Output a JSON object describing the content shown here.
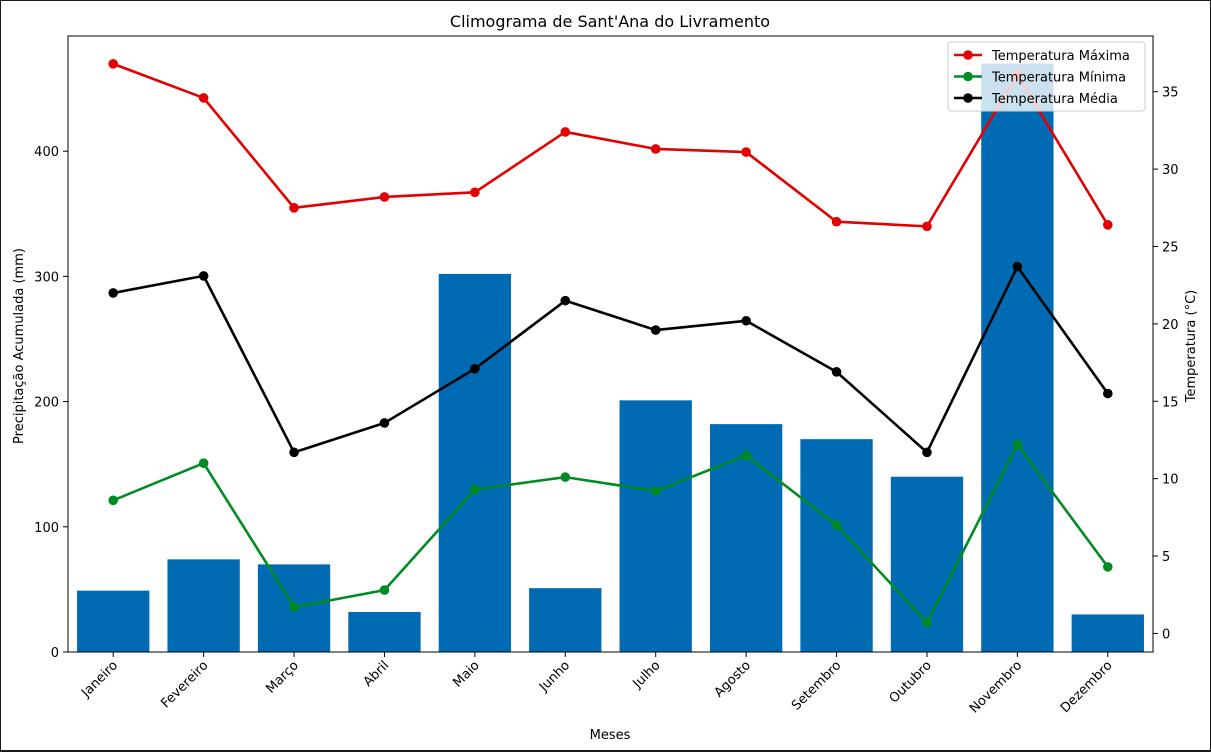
{
  "chart_data": {
    "type": "bar",
    "title": "Climograma de Sant'Ana do Livramento",
    "xlabel": "Meses",
    "ylabel": "Precipitação Acumulada (mm)",
    "y2label": "Temperatura (°C)",
    "categories": [
      "Janeiro",
      "Fevereiro",
      "Março",
      "Abril",
      "Maio",
      "Junho",
      "Julho",
      "Agosto",
      "Setembro",
      "Outubro",
      "Novembro",
      "Dezembro"
    ],
    "ylim": [
      0,
      492
    ],
    "y2lim": [
      -1.2,
      38.6
    ],
    "yticks": [
      0,
      100,
      200,
      300,
      400
    ],
    "y2ticks": [
      0,
      5,
      10,
      15,
      20,
      25,
      30,
      35
    ],
    "grid": false,
    "legend_position": "top-right",
    "bars": {
      "axis": "left",
      "color": "#006bb3",
      "values": [
        49,
        74,
        70,
        32,
        302,
        51,
        201,
        182,
        170,
        140,
        470,
        30
      ]
    },
    "series": [
      {
        "name": "Temperatura Máxima",
        "axis": "right",
        "color": "#e30000",
        "values": [
          36.8,
          34.6,
          27.5,
          28.2,
          28.5,
          32.4,
          31.3,
          31.1,
          26.6,
          26.3,
          36.1,
          26.4
        ]
      },
      {
        "name": "Temperatura Mínima",
        "axis": "right",
        "color": "#008c23",
        "values": [
          8.6,
          11.0,
          1.7,
          2.8,
          9.3,
          10.1,
          9.2,
          11.5,
          7.0,
          0.7,
          12.2,
          4.3
        ]
      },
      {
        "name": "Temperatura Média",
        "axis": "right",
        "color": "#000000",
        "values": [
          22.0,
          23.1,
          11.7,
          13.6,
          17.1,
          21.5,
          19.6,
          20.2,
          16.9,
          11.7,
          23.7,
          15.5
        ]
      }
    ]
  }
}
